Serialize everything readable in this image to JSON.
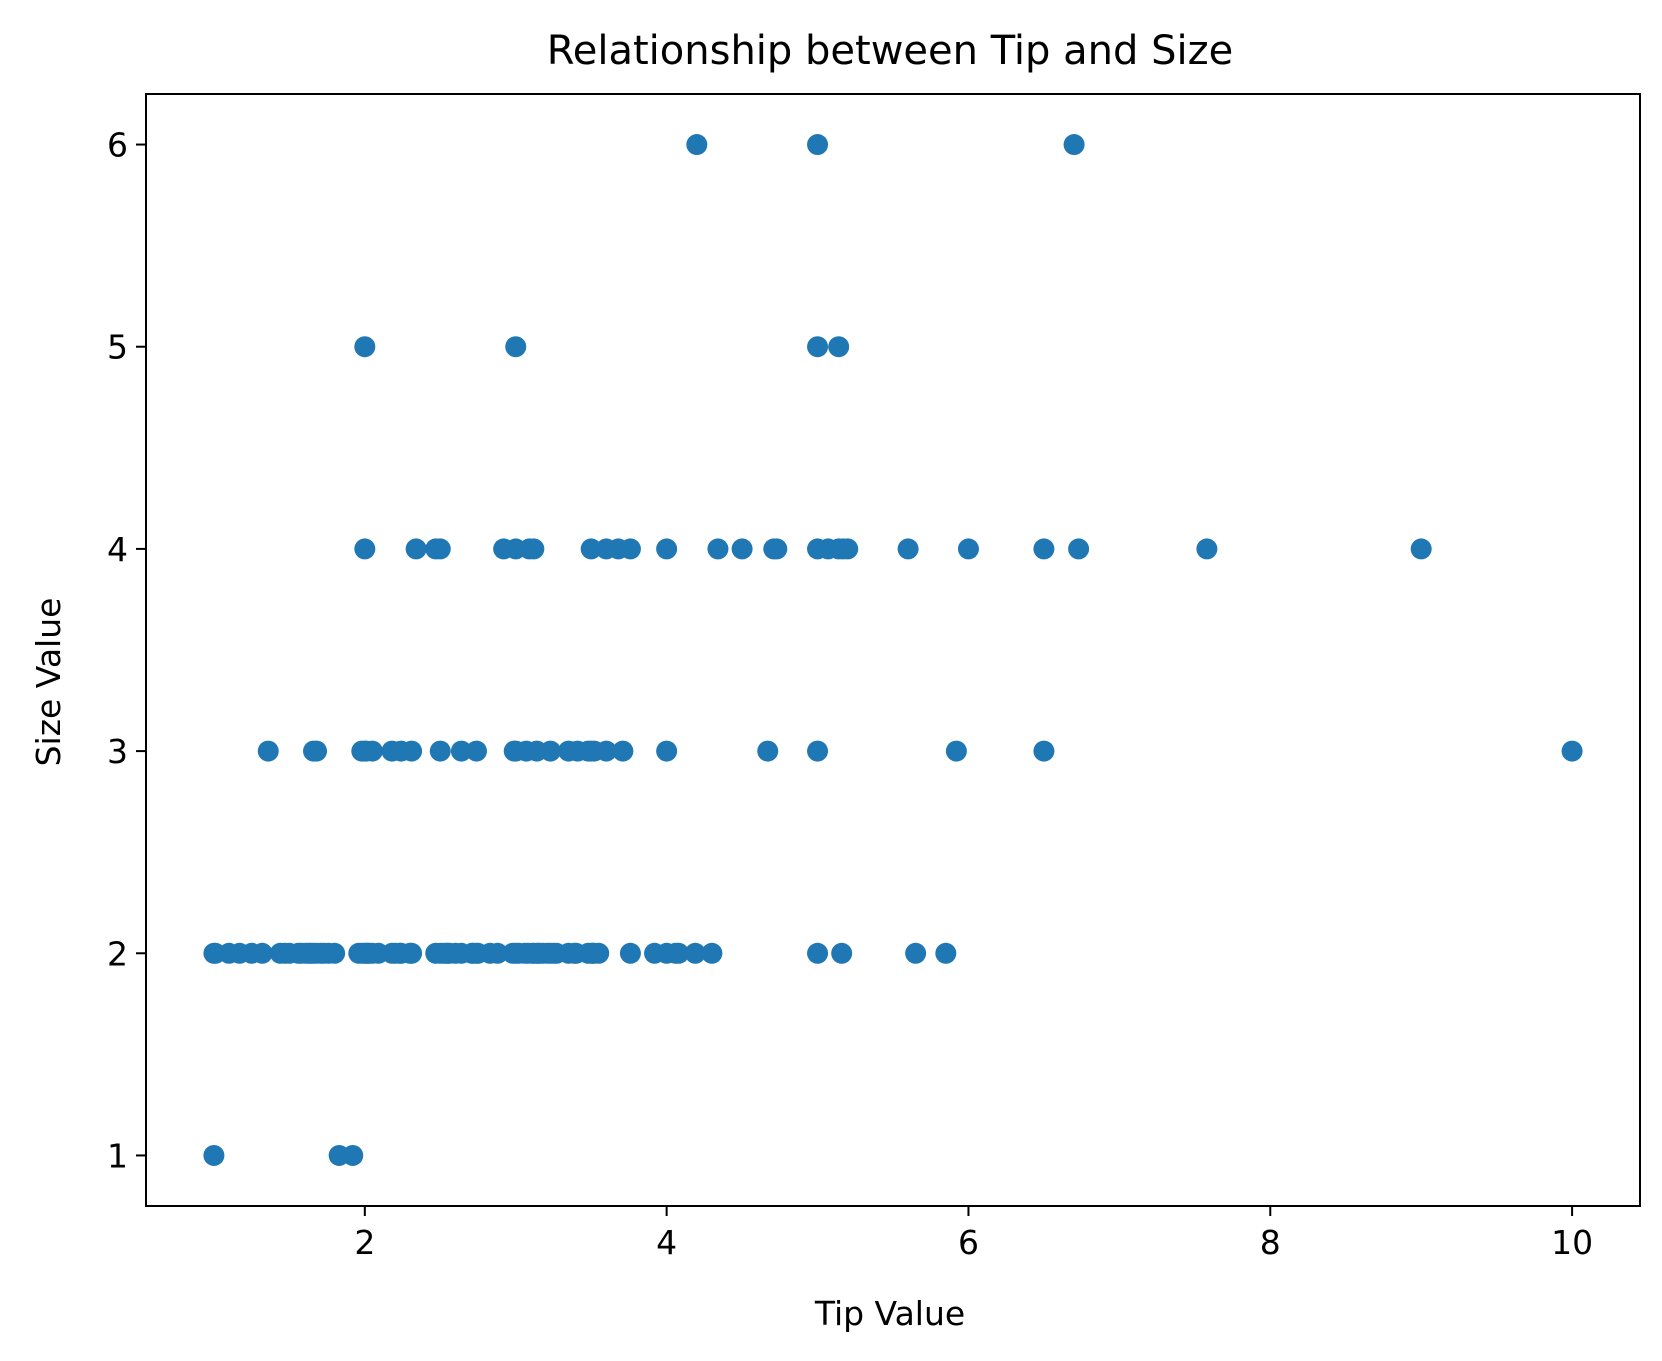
{
  "chart_data": {
    "type": "scatter",
    "title": "Relationship between Tip and Size",
    "xlabel": "Tip Value",
    "ylabel": "Size Value",
    "xlim": [
      0.55,
      10.45
    ],
    "ylim": [
      0.75,
      6.25
    ],
    "xticks": [
      2,
      4,
      6,
      8,
      10
    ],
    "yticks": [
      1,
      2,
      3,
      4,
      5,
      6
    ],
    "grid": false,
    "marker_color": "#1f77b4",
    "series": [
      {
        "points": [
          {
            "x": 1.0,
            "y": 1
          },
          {
            "x": 1.83,
            "y": 1
          },
          {
            "x": 1.92,
            "y": 1
          },
          {
            "x": 1.0,
            "y": 2
          },
          {
            "x": 1.01,
            "y": 2
          },
          {
            "x": 1.1,
            "y": 2
          },
          {
            "x": 1.17,
            "y": 2
          },
          {
            "x": 1.25,
            "y": 2
          },
          {
            "x": 1.32,
            "y": 2
          },
          {
            "x": 1.44,
            "y": 2
          },
          {
            "x": 1.47,
            "y": 2
          },
          {
            "x": 1.5,
            "y": 2
          },
          {
            "x": 1.56,
            "y": 2
          },
          {
            "x": 1.58,
            "y": 2
          },
          {
            "x": 1.61,
            "y": 2
          },
          {
            "x": 1.63,
            "y": 2
          },
          {
            "x": 1.64,
            "y": 2
          },
          {
            "x": 1.66,
            "y": 2
          },
          {
            "x": 1.68,
            "y": 2
          },
          {
            "x": 1.71,
            "y": 2
          },
          {
            "x": 1.73,
            "y": 2
          },
          {
            "x": 1.76,
            "y": 2
          },
          {
            "x": 1.8,
            "y": 2
          },
          {
            "x": 1.96,
            "y": 2
          },
          {
            "x": 1.98,
            "y": 2
          },
          {
            "x": 2.0,
            "y": 2
          },
          {
            "x": 2.01,
            "y": 2
          },
          {
            "x": 2.02,
            "y": 2
          },
          {
            "x": 2.03,
            "y": 2
          },
          {
            "x": 2.05,
            "y": 2
          },
          {
            "x": 2.09,
            "y": 2
          },
          {
            "x": 2.18,
            "y": 2
          },
          {
            "x": 2.2,
            "y": 2
          },
          {
            "x": 2.23,
            "y": 2
          },
          {
            "x": 2.24,
            "y": 2
          },
          {
            "x": 2.3,
            "y": 2
          },
          {
            "x": 2.31,
            "y": 2
          },
          {
            "x": 2.47,
            "y": 2
          },
          {
            "x": 2.5,
            "y": 2
          },
          {
            "x": 2.52,
            "y": 2
          },
          {
            "x": 2.54,
            "y": 2
          },
          {
            "x": 2.55,
            "y": 2
          },
          {
            "x": 2.56,
            "y": 2
          },
          {
            "x": 2.6,
            "y": 2
          },
          {
            "x": 2.64,
            "y": 2
          },
          {
            "x": 2.71,
            "y": 2
          },
          {
            "x": 2.72,
            "y": 2
          },
          {
            "x": 2.74,
            "y": 2
          },
          {
            "x": 2.75,
            "y": 2
          },
          {
            "x": 2.83,
            "y": 2
          },
          {
            "x": 2.88,
            "y": 2
          },
          {
            "x": 2.98,
            "y": 2
          },
          {
            "x": 3.0,
            "y": 2
          },
          {
            "x": 3.02,
            "y": 2
          },
          {
            "x": 3.06,
            "y": 2
          },
          {
            "x": 3.08,
            "y": 2
          },
          {
            "x": 3.11,
            "y": 2
          },
          {
            "x": 3.12,
            "y": 2
          },
          {
            "x": 3.14,
            "y": 2
          },
          {
            "x": 3.15,
            "y": 2
          },
          {
            "x": 3.16,
            "y": 2
          },
          {
            "x": 3.18,
            "y": 2
          },
          {
            "x": 3.21,
            "y": 2
          },
          {
            "x": 3.23,
            "y": 2
          },
          {
            "x": 3.25,
            "y": 2
          },
          {
            "x": 3.27,
            "y": 2
          },
          {
            "x": 3.35,
            "y": 2
          },
          {
            "x": 3.39,
            "y": 2
          },
          {
            "x": 3.4,
            "y": 2
          },
          {
            "x": 3.48,
            "y": 2
          },
          {
            "x": 3.5,
            "y": 2
          },
          {
            "x": 3.51,
            "y": 2
          },
          {
            "x": 3.52,
            "y": 2
          },
          {
            "x": 3.55,
            "y": 2
          },
          {
            "x": 3.76,
            "y": 2
          },
          {
            "x": 3.92,
            "y": 2
          },
          {
            "x": 4.0,
            "y": 2
          },
          {
            "x": 4.06,
            "y": 2
          },
          {
            "x": 4.08,
            "y": 2
          },
          {
            "x": 4.19,
            "y": 2
          },
          {
            "x": 4.3,
            "y": 2
          },
          {
            "x": 5.0,
            "y": 2
          },
          {
            "x": 5.16,
            "y": 2
          },
          {
            "x": 5.65,
            "y": 2
          },
          {
            "x": 5.85,
            "y": 2
          },
          {
            "x": 1.36,
            "y": 3
          },
          {
            "x": 1.66,
            "y": 3
          },
          {
            "x": 1.68,
            "y": 3
          },
          {
            "x": 1.98,
            "y": 3
          },
          {
            "x": 2.0,
            "y": 3
          },
          {
            "x": 2.01,
            "y": 3
          },
          {
            "x": 2.05,
            "y": 3
          },
          {
            "x": 2.18,
            "y": 3
          },
          {
            "x": 2.24,
            "y": 3
          },
          {
            "x": 2.31,
            "y": 3
          },
          {
            "x": 2.5,
            "y": 3
          },
          {
            "x": 2.64,
            "y": 3
          },
          {
            "x": 2.74,
            "y": 3
          },
          {
            "x": 2.99,
            "y": 3
          },
          {
            "x": 3.0,
            "y": 3
          },
          {
            "x": 3.07,
            "y": 3
          },
          {
            "x": 3.14,
            "y": 3
          },
          {
            "x": 3.23,
            "y": 3
          },
          {
            "x": 3.35,
            "y": 3
          },
          {
            "x": 3.41,
            "y": 3
          },
          {
            "x": 3.48,
            "y": 3
          },
          {
            "x": 3.5,
            "y": 3
          },
          {
            "x": 3.52,
            "y": 3
          },
          {
            "x": 3.6,
            "y": 3
          },
          {
            "x": 3.71,
            "y": 3
          },
          {
            "x": 4.0,
            "y": 3
          },
          {
            "x": 4.67,
            "y": 3
          },
          {
            "x": 5.0,
            "y": 3
          },
          {
            "x": 5.92,
            "y": 3
          },
          {
            "x": 6.5,
            "y": 3
          },
          {
            "x": 10.0,
            "y": 3
          },
          {
            "x": 2.0,
            "y": 4
          },
          {
            "x": 2.34,
            "y": 4
          },
          {
            "x": 2.47,
            "y": 4
          },
          {
            "x": 2.5,
            "y": 4
          },
          {
            "x": 2.92,
            "y": 4
          },
          {
            "x": 3.0,
            "y": 4
          },
          {
            "x": 3.09,
            "y": 4
          },
          {
            "x": 3.12,
            "y": 4
          },
          {
            "x": 3.5,
            "y": 4
          },
          {
            "x": 3.6,
            "y": 4
          },
          {
            "x": 3.68,
            "y": 4
          },
          {
            "x": 3.76,
            "y": 4
          },
          {
            "x": 4.0,
            "y": 4
          },
          {
            "x": 4.34,
            "y": 4
          },
          {
            "x": 4.5,
            "y": 4
          },
          {
            "x": 4.71,
            "y": 4
          },
          {
            "x": 4.73,
            "y": 4
          },
          {
            "x": 5.0,
            "y": 4
          },
          {
            "x": 5.07,
            "y": 4
          },
          {
            "x": 5.14,
            "y": 4
          },
          {
            "x": 5.17,
            "y": 4
          },
          {
            "x": 5.2,
            "y": 4
          },
          {
            "x": 5.6,
            "y": 4
          },
          {
            "x": 6.0,
            "y": 4
          },
          {
            "x": 6.5,
            "y": 4
          },
          {
            "x": 6.73,
            "y": 4
          },
          {
            "x": 7.58,
            "y": 4
          },
          {
            "x": 9.0,
            "y": 4
          },
          {
            "x": 2.0,
            "y": 5
          },
          {
            "x": 3.0,
            "y": 5
          },
          {
            "x": 5.0,
            "y": 5
          },
          {
            "x": 5.14,
            "y": 5
          },
          {
            "x": 4.2,
            "y": 6
          },
          {
            "x": 5.0,
            "y": 6
          },
          {
            "x": 6.7,
            "y": 6
          }
        ]
      }
    ]
  }
}
